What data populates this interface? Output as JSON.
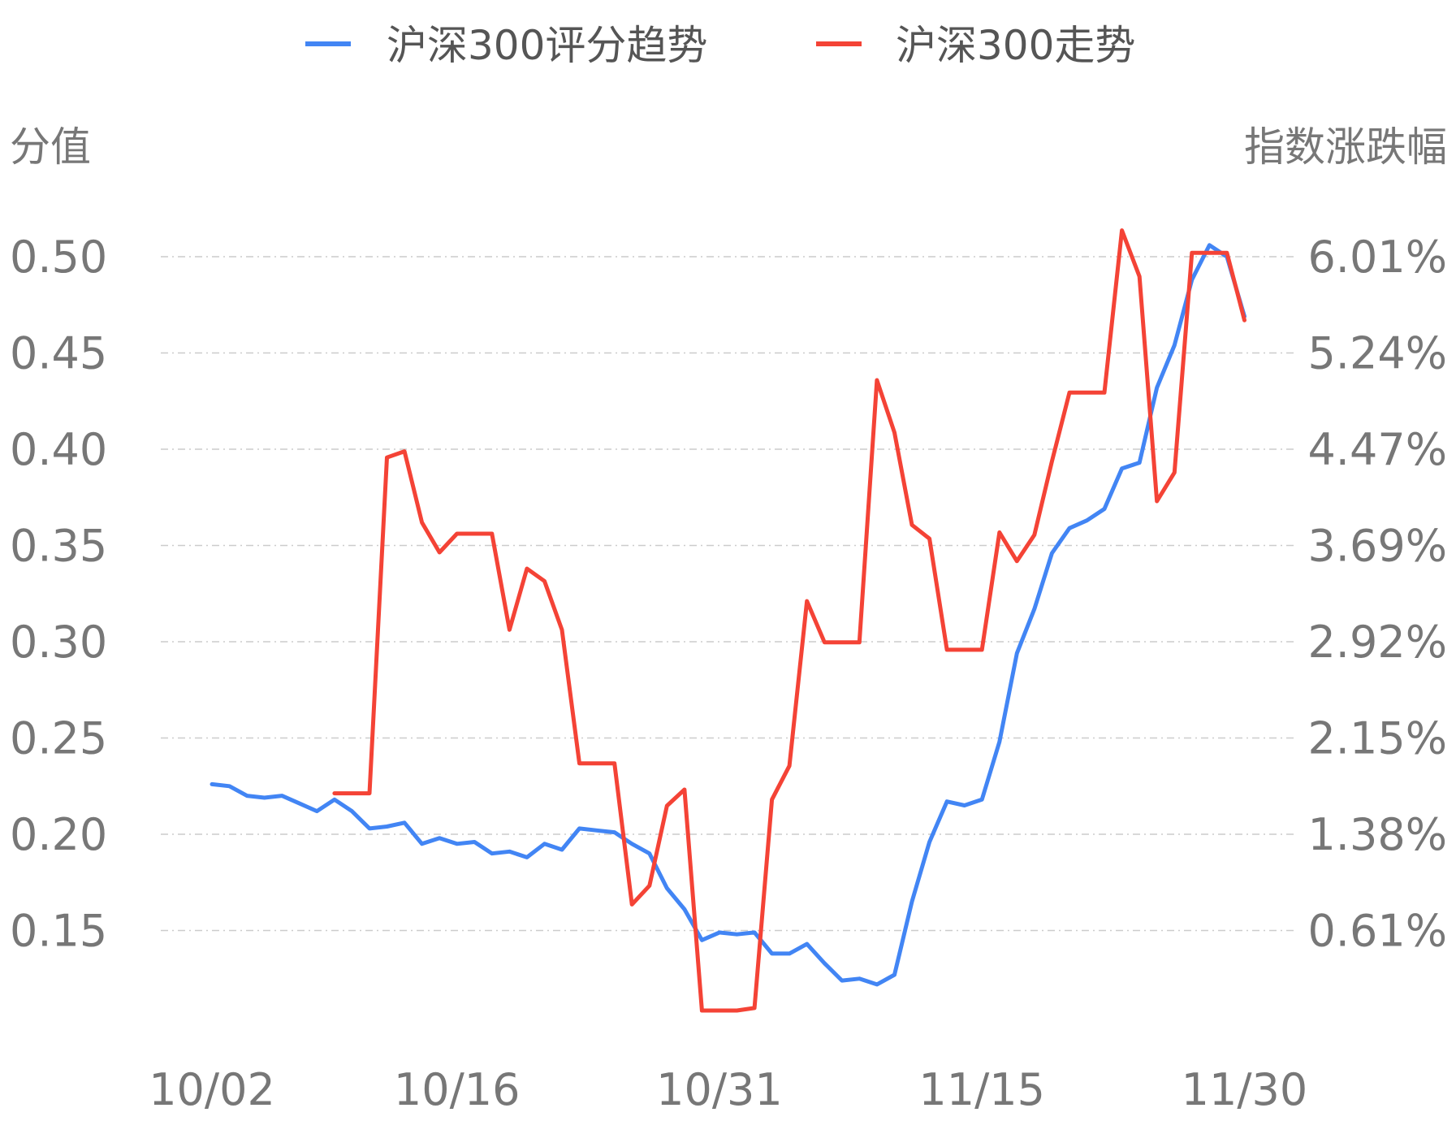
{
  "chart_data": {
    "type": "line",
    "legend_position": "top",
    "grid": true,
    "y_left_title": "分值",
    "y_right_title": "指数涨跌幅",
    "y_left_ticks": [
      "0.50",
      "0.45",
      "0.40",
      "0.35",
      "0.30",
      "0.25",
      "0.20",
      "0.15"
    ],
    "y_right_ticks": [
      "6.01%",
      "5.24%",
      "4.47%",
      "3.69%",
      "2.92%",
      "2.15%",
      "1.38%",
      "0.61%"
    ],
    "y_left_range": [
      0.1,
      0.55
    ],
    "y_right_range": [
      -0.16,
      6.78
    ],
    "x_tick_labels": [
      "10/02",
      "10/16",
      "10/31",
      "11/15",
      "11/30"
    ],
    "x_tick_index": [
      0,
      14,
      29,
      44,
      59
    ],
    "series": [
      {
        "name": "沪深300评分趋势",
        "axis": "left",
        "color": "#4285f4",
        "values": [
          0.226,
          0.225,
          0.22,
          0.219,
          0.22,
          0.216,
          0.212,
          0.218,
          0.212,
          0.203,
          0.204,
          0.206,
          0.195,
          0.198,
          0.195,
          0.196,
          0.19,
          0.191,
          0.188,
          0.195,
          0.192,
          0.203,
          0.202,
          0.201,
          0.195,
          0.19,
          0.172,
          0.161,
          0.145,
          0.149,
          0.148,
          0.149,
          0.138,
          0.138,
          0.143,
          0.133,
          0.124,
          0.125,
          0.122,
          0.127,
          0.165,
          0.196,
          0.217,
          0.215,
          0.218,
          0.248,
          0.294,
          0.317,
          0.346,
          0.359,
          0.363,
          0.369,
          0.39,
          0.393,
          0.432,
          0.454,
          0.488,
          0.506,
          0.5,
          0.469
        ]
      },
      {
        "name": "沪深300走势",
        "axis": "right",
        "color": "#f44336",
        "values": [
          null,
          null,
          null,
          null,
          null,
          null,
          null,
          1.71,
          1.71,
          1.71,
          4.4,
          4.45,
          3.88,
          3.64,
          3.79,
          3.79,
          3.79,
          3.02,
          3.51,
          3.41,
          3.02,
          1.95,
          1.95,
          1.95,
          0.82,
          0.97,
          1.61,
          1.74,
          -0.03,
          -0.03,
          -0.03,
          -0.01,
          1.66,
          1.93,
          3.25,
          2.92,
          2.92,
          2.92,
          5.02,
          4.6,
          3.86,
          3.75,
          2.86,
          2.86,
          2.86,
          3.8,
          3.57,
          3.78,
          4.37,
          4.92,
          4.92,
          4.92,
          6.22,
          5.85,
          4.05,
          4.28,
          6.04,
          6.04,
          6.04,
          5.5
        ]
      }
    ]
  }
}
